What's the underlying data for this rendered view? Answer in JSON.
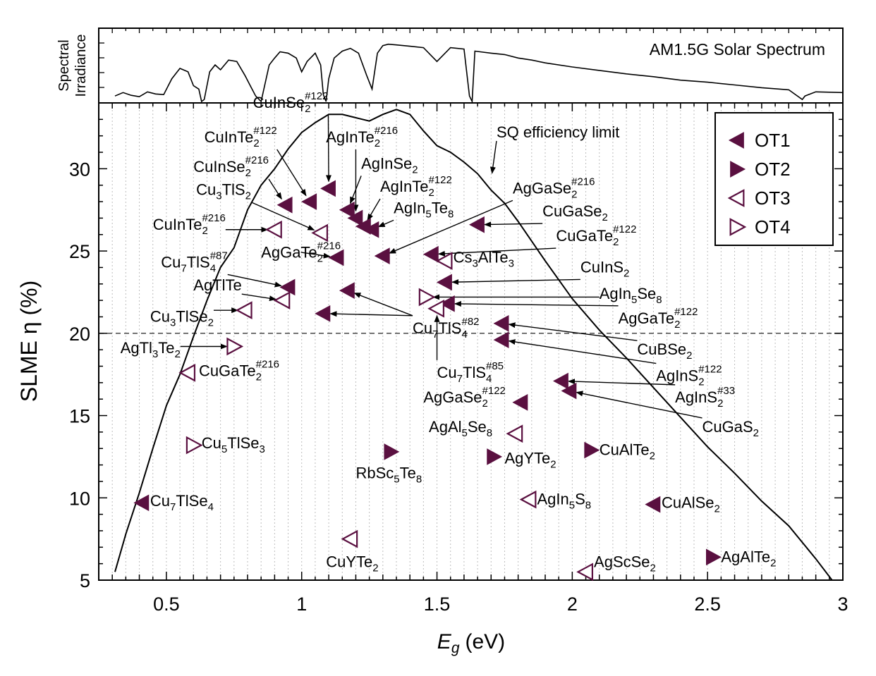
{
  "colors": {
    "marker": "#5a1040",
    "curve": "#000000",
    "grid": "#bdbdbd",
    "dash": "#555555"
  },
  "chart_data": [
    {
      "type": "line",
      "panel": "top",
      "ylabel_lines": [
        "Spectral",
        "Irradiance"
      ],
      "title": "AM1.5G Solar Spectrum",
      "x": [
        0.31,
        0.34,
        0.37,
        0.4,
        0.43,
        0.46,
        0.49,
        0.52,
        0.55,
        0.58,
        0.6,
        0.62,
        0.63,
        0.64,
        0.66,
        0.68,
        0.7,
        0.73,
        0.76,
        0.79,
        0.81,
        0.83,
        0.85,
        0.88,
        0.9,
        0.92,
        0.95,
        0.98,
        1.0,
        1.02,
        1.05,
        1.07,
        1.08,
        1.09,
        1.1,
        1.12,
        1.15,
        1.18,
        1.21,
        1.24,
        1.26,
        1.28,
        1.3,
        1.32,
        1.35,
        1.4,
        1.45,
        1.5,
        1.55,
        1.6,
        1.62,
        1.63,
        1.64,
        1.66,
        1.7,
        1.75,
        1.8,
        1.85,
        1.9,
        2.0,
        2.1,
        2.2,
        2.3,
        2.4,
        2.5,
        2.6,
        2.7,
        2.8,
        2.85,
        2.86,
        2.9,
        3.0
      ],
      "y": [
        0.1,
        0.15,
        0.11,
        0.09,
        0.16,
        0.13,
        0.12,
        0.35,
        0.5,
        0.45,
        0.25,
        0.2,
        0.02,
        0.05,
        0.45,
        0.55,
        0.48,
        0.62,
        0.6,
        0.4,
        0.25,
        0.1,
        0.02,
        0.55,
        0.65,
        0.74,
        0.72,
        0.65,
        0.45,
        0.6,
        0.72,
        0.55,
        0.12,
        0.02,
        0.35,
        0.65,
        0.75,
        0.79,
        0.72,
        0.4,
        0.2,
        0.72,
        0.83,
        0.85,
        0.84,
        0.82,
        0.8,
        0.6,
        0.8,
        0.78,
        0.1,
        0.02,
        0.75,
        0.74,
        0.72,
        0.7,
        0.65,
        0.62,
        0.58,
        0.52,
        0.47,
        0.42,
        0.38,
        0.33,
        0.3,
        0.26,
        0.22,
        0.19,
        0.05,
        0.1,
        0.16,
        0.15
      ]
    },
    {
      "type": "scatter",
      "panel": "main",
      "xlabel_sym": "E",
      "xlabel_sub": "g",
      "xlabel_unit": "(eV)",
      "ylabel": "SLME η (%)",
      "xlim": [
        0.25,
        3.0
      ],
      "ylim": [
        5,
        34
      ],
      "xticks": [
        0.5,
        1,
        1.5,
        2,
        2.5,
        3
      ],
      "xtick_labels": [
        "0.5",
        "1",
        "1.5",
        "2",
        "2.5",
        "3"
      ],
      "yticks": [
        5,
        10,
        15,
        20,
        25,
        30
      ],
      "ytick_labels": [
        "5",
        "10",
        "15",
        "20",
        "25",
        "30"
      ],
      "hline": 20,
      "sq_label": "SQ efficiency limit",
      "sq_curve": {
        "x": [
          0.31,
          0.35,
          0.4,
          0.45,
          0.5,
          0.55,
          0.6,
          0.65,
          0.7,
          0.75,
          0.8,
          0.85,
          0.9,
          0.95,
          1.0,
          1.05,
          1.1,
          1.15,
          1.2,
          1.25,
          1.3,
          1.35,
          1.4,
          1.45,
          1.5,
          1.55,
          1.6,
          1.65,
          1.7,
          1.75,
          1.8,
          1.85,
          1.9,
          2.0,
          2.1,
          2.2,
          2.3,
          2.4,
          2.5,
          2.6,
          2.7,
          2.8,
          2.9,
          2.96
        ],
        "y": [
          5.5,
          7.8,
          10.3,
          13.0,
          15.6,
          17.5,
          19.8,
          22.0,
          24.0,
          25.2,
          27.5,
          29.0,
          30.0,
          31.2,
          32.2,
          32.8,
          33.3,
          33.3,
          33.1,
          32.9,
          33.3,
          33.6,
          33.3,
          32.3,
          31.4,
          31.0,
          30.4,
          29.7,
          28.7,
          27.9,
          26.8,
          25.6,
          24.4,
          22.1,
          20.2,
          18.5,
          16.7,
          14.9,
          13.1,
          11.5,
          9.8,
          8.3,
          6.3,
          5.0
        ]
      },
      "legend": [
        {
          "name": "OT1",
          "shape": "left",
          "filled": true
        },
        {
          "name": "OT2",
          "shape": "right",
          "filled": true
        },
        {
          "name": "OT3",
          "shape": "left",
          "filled": false
        },
        {
          "name": "OT4",
          "shape": "right",
          "filled": false
        }
      ],
      "points": [
        {
          "x": 0.41,
          "y": 9.7,
          "shape": "left",
          "filled": true
        },
        {
          "x": 0.94,
          "y": 27.8,
          "shape": "left",
          "filled": true
        },
        {
          "x": 1.03,
          "y": 28.0,
          "shape": "left",
          "filled": true
        },
        {
          "x": 1.1,
          "y": 28.8,
          "shape": "left",
          "filled": true
        },
        {
          "x": 0.9,
          "y": 26.3,
          "shape": "left",
          "filled": false
        },
        {
          "x": 1.07,
          "y": 26.1,
          "shape": "left",
          "filled": false
        },
        {
          "x": 1.17,
          "y": 27.5,
          "shape": "left",
          "filled": true
        },
        {
          "x": 1.2,
          "y": 27.0,
          "shape": "left",
          "filled": true
        },
        {
          "x": 1.23,
          "y": 26.5,
          "shape": "left",
          "filled": true
        },
        {
          "x": 1.26,
          "y": 26.3,
          "shape": "left",
          "filled": true
        },
        {
          "x": 1.13,
          "y": 24.6,
          "shape": "left",
          "filled": true
        },
        {
          "x": 1.3,
          "y": 24.7,
          "shape": "left",
          "filled": true
        },
        {
          "x": 0.95,
          "y": 22.8,
          "shape": "left",
          "filled": true
        },
        {
          "x": 0.93,
          "y": 22.0,
          "shape": "left",
          "filled": false
        },
        {
          "x": 1.17,
          "y": 22.6,
          "shape": "left",
          "filled": true
        },
        {
          "x": 1.08,
          "y": 21.2,
          "shape": "left",
          "filled": true
        },
        {
          "x": 0.79,
          "y": 21.4,
          "shape": "left",
          "filled": false
        },
        {
          "x": 0.75,
          "y": 19.2,
          "shape": "right",
          "filled": false
        },
        {
          "x": 0.58,
          "y": 17.6,
          "shape": "left",
          "filled": false
        },
        {
          "x": 0.6,
          "y": 13.2,
          "shape": "right",
          "filled": false
        },
        {
          "x": 1.65,
          "y": 26.6,
          "shape": "left",
          "filled": true
        },
        {
          "x": 1.48,
          "y": 24.8,
          "shape": "left",
          "filled": true
        },
        {
          "x": 1.53,
          "y": 24.4,
          "shape": "left",
          "filled": false
        },
        {
          "x": 1.53,
          "y": 23.1,
          "shape": "left",
          "filled": true
        },
        {
          "x": 1.46,
          "y": 22.2,
          "shape": "right",
          "filled": false
        },
        {
          "x": 1.54,
          "y": 21.8,
          "shape": "left",
          "filled": true
        },
        {
          "x": 1.5,
          "y": 21.5,
          "shape": "left",
          "filled": false
        },
        {
          "x": 1.74,
          "y": 20.6,
          "shape": "left",
          "filled": true
        },
        {
          "x": 1.74,
          "y": 19.6,
          "shape": "left",
          "filled": true
        },
        {
          "x": 1.96,
          "y": 17.1,
          "shape": "left",
          "filled": true
        },
        {
          "x": 1.99,
          "y": 16.5,
          "shape": "left",
          "filled": true
        },
        {
          "x": 1.81,
          "y": 15.8,
          "shape": "left",
          "filled": true
        },
        {
          "x": 1.79,
          "y": 13.9,
          "shape": "left",
          "filled": false
        },
        {
          "x": 1.33,
          "y": 12.8,
          "shape": "right",
          "filled": true
        },
        {
          "x": 1.71,
          "y": 12.5,
          "shape": "right",
          "filled": true
        },
        {
          "x": 2.07,
          "y": 12.9,
          "shape": "right",
          "filled": true
        },
        {
          "x": 1.84,
          "y": 9.9,
          "shape": "left",
          "filled": false
        },
        {
          "x": 2.3,
          "y": 9.6,
          "shape": "left",
          "filled": true
        },
        {
          "x": 1.18,
          "y": 7.5,
          "shape": "left",
          "filled": false
        },
        {
          "x": 2.05,
          "y": 5.5,
          "shape": "left",
          "filled": false
        },
        {
          "x": 2.52,
          "y": 6.4,
          "shape": "right",
          "filled": true
        }
      ],
      "annotations": [
        {
          "main": "CuInSe",
          "sub": "2",
          "sup": "#122",
          "x": 0.82,
          "y": 33.7,
          "ax": 1.1,
          "ay": 28.8
        },
        {
          "main": "CuInTe",
          "sub": "2",
          "sup": "#122",
          "x": 0.64,
          "y": 31.6,
          "ax": 1.03,
          "ay": 28.0
        },
        {
          "main": "CuInSe",
          "sub": "2",
          "sup": "#216",
          "x": 0.6,
          "y": 29.8,
          "ax": 0.94,
          "ay": 27.8
        },
        {
          "main": "Cu",
          "sub": "3",
          "main2": "TlS",
          "sub2": "2",
          "x": 0.61,
          "y": 28.4,
          "ax": 1.07,
          "ay": 26.1
        },
        {
          "main": "CuInTe",
          "sub": "2",
          "sup": "#216",
          "x": 0.45,
          "y": 26.3,
          "ax": 0.9,
          "ay": 26.3
        },
        {
          "main": "AgInTe",
          "sub": "2",
          "sup": "#216",
          "x": 1.09,
          "y": 31.6,
          "ax": 1.2,
          "ay": 27.0
        },
        {
          "main": "AgInSe",
          "sub": "2",
          "x": 1.22,
          "y": 30.0,
          "ax": 1.17,
          "ay": 27.5
        },
        {
          "main": "AgInTe",
          "sub": "2",
          "sup": "#122",
          "x": 1.29,
          "y": 28.6,
          "ax": 1.23,
          "ay": 26.5
        },
        {
          "main": "AgIn",
          "sub": "5",
          "main2": "Te",
          "sub2": "8",
          "x": 1.34,
          "y": 27.3,
          "ax": 1.26,
          "ay": 26.3
        },
        {
          "main": "AgGaTe",
          "sub": "2",
          "sup": "#216",
          "x": 0.85,
          "y": 24.6,
          "ax": 1.13,
          "ay": 24.6
        },
        {
          "main": "AgGaSe",
          "sub": "2",
          "sup": "#216",
          "x": 1.78,
          "y": 28.5,
          "ax": 1.3,
          "ay": 24.7
        },
        {
          "main": "SQ efficiency limit",
          "x": 1.72,
          "y": 31.9,
          "ax": 1.7,
          "ay": 29.3
        },
        {
          "main": "Cu",
          "sub": "7",
          "main2": "TlS",
          "sub2": "4",
          "sup": "#87",
          "x": 0.48,
          "y": 24.0,
          "ax": 0.95,
          "ay": 22.8
        },
        {
          "main": "AgTlTe",
          "x": 0.6,
          "y": 22.6,
          "ax": 0.93,
          "ay": 22.0
        },
        {
          "main": "Cu",
          "sub": "3",
          "main2": "TlSe",
          "sub2": "2",
          "x": 0.44,
          "y": 20.7,
          "ax": 0.79,
          "ay": 21.4
        },
        {
          "main": "AgTl",
          "sub": "3",
          "main2": "Te",
          "sub2": "2",
          "x": 0.33,
          "y": 18.8,
          "ax": 0.75,
          "ay": 19.2
        },
        {
          "main": "CuGaTe",
          "sub": "2",
          "sup": "#216",
          "x": 0.62,
          "y": 17.4
        },
        {
          "main": "Cu",
          "sub": "5",
          "main2": "TlSe",
          "sub2": "3",
          "x": 0.63,
          "y": 13.0
        },
        {
          "main": "Cu",
          "sub": "7",
          "main2": "TlSe",
          "sub2": "4",
          "x": 0.44,
          "y": 9.5
        },
        {
          "main": "Cu",
          "sub": "7",
          "main2": "TlS",
          "sub2": "4",
          "sup": "#82",
          "x": 1.41,
          "y": 20.0,
          "ax1": 1.08,
          "ay1": 21.2,
          "ax2": 1.17,
          "ay2": 22.6
        },
        {
          "main": "Cu",
          "sub": "7",
          "main2": "TlS",
          "sub2": "4",
          "sup": "#85",
          "x": 1.5,
          "y": 17.3,
          "ax": 1.5,
          "ay": 21.5
        },
        {
          "main": "CuGaSe",
          "sub": "2",
          "x": 1.89,
          "y": 27.1,
          "ax": 1.65,
          "ay": 26.6
        },
        {
          "main": "CuGaTe",
          "sub": "2",
          "sup": "#122",
          "x": 1.94,
          "y": 25.6,
          "ax": 1.48,
          "ay": 24.8
        },
        {
          "main": "Cs",
          "sub": "3",
          "main2": "AlTe",
          "sub2": "3",
          "x": 1.56,
          "y": 24.3
        },
        {
          "main": "CuInS",
          "sub": "2",
          "x": 2.03,
          "y": 23.7,
          "ax": 1.53,
          "ay": 23.1
        },
        {
          "main": "AgIn",
          "sub": "5",
          "main2": "Se",
          "sub2": "8",
          "x": 2.1,
          "y": 22.1,
          "ax": 1.46,
          "ay": 22.2
        },
        {
          "main": "AgGaTe",
          "sub": "2",
          "sup": "#122",
          "x": 2.17,
          "y": 20.6,
          "ax": 1.54,
          "ay": 21.8
        },
        {
          "main": "CuBSe",
          "sub": "2",
          "x": 2.24,
          "y": 18.7,
          "ax": 1.74,
          "ay": 20.6
        },
        {
          "main": "AgInS",
          "sub": "2",
          "sup": "#122",
          "x": 2.31,
          "y": 17.1,
          "ax": 1.74,
          "ay": 19.6
        },
        {
          "main": "AgInS",
          "sub": "2",
          "sup": "#33",
          "x": 2.38,
          "y": 15.8,
          "ax": 1.96,
          "ay": 17.1
        },
        {
          "main": "CuGaS",
          "sub": "2",
          "x": 2.48,
          "y": 14.0,
          "ax": 1.99,
          "ay": 16.5
        },
        {
          "main": "AgGaSe",
          "sub": "2",
          "sup": "#122",
          "x": 1.45,
          "y": 15.8
        },
        {
          "main": "AgAl",
          "sub": "5",
          "main2": "Se",
          "sub2": "8",
          "x": 1.47,
          "y": 14.0
        },
        {
          "main": "RbSc",
          "sub": "5",
          "main2": "Te",
          "sub2": "8",
          "x": 1.2,
          "y": 11.2
        },
        {
          "main": "AgYTe",
          "sub": "2",
          "x": 1.75,
          "y": 12.1
        },
        {
          "main": "CuAlTe",
          "sub": "2",
          "x": 2.1,
          "y": 12.6
        },
        {
          "main": "AgIn",
          "sub": "5",
          "main2": "S",
          "sub2": "8",
          "x": 1.87,
          "y": 9.6
        },
        {
          "main": "CuAlSe",
          "sub": "2",
          "x": 2.33,
          "y": 9.4
        },
        {
          "main": "CuYTe",
          "sub": "2",
          "x": 1.09,
          "y": 5.8
        },
        {
          "main": "AgScSe",
          "sub": "2",
          "x": 2.08,
          "y": 5.8
        },
        {
          "main": "AgAlTe",
          "sub": "2",
          "x": 2.55,
          "y": 6.1
        }
      ]
    }
  ]
}
